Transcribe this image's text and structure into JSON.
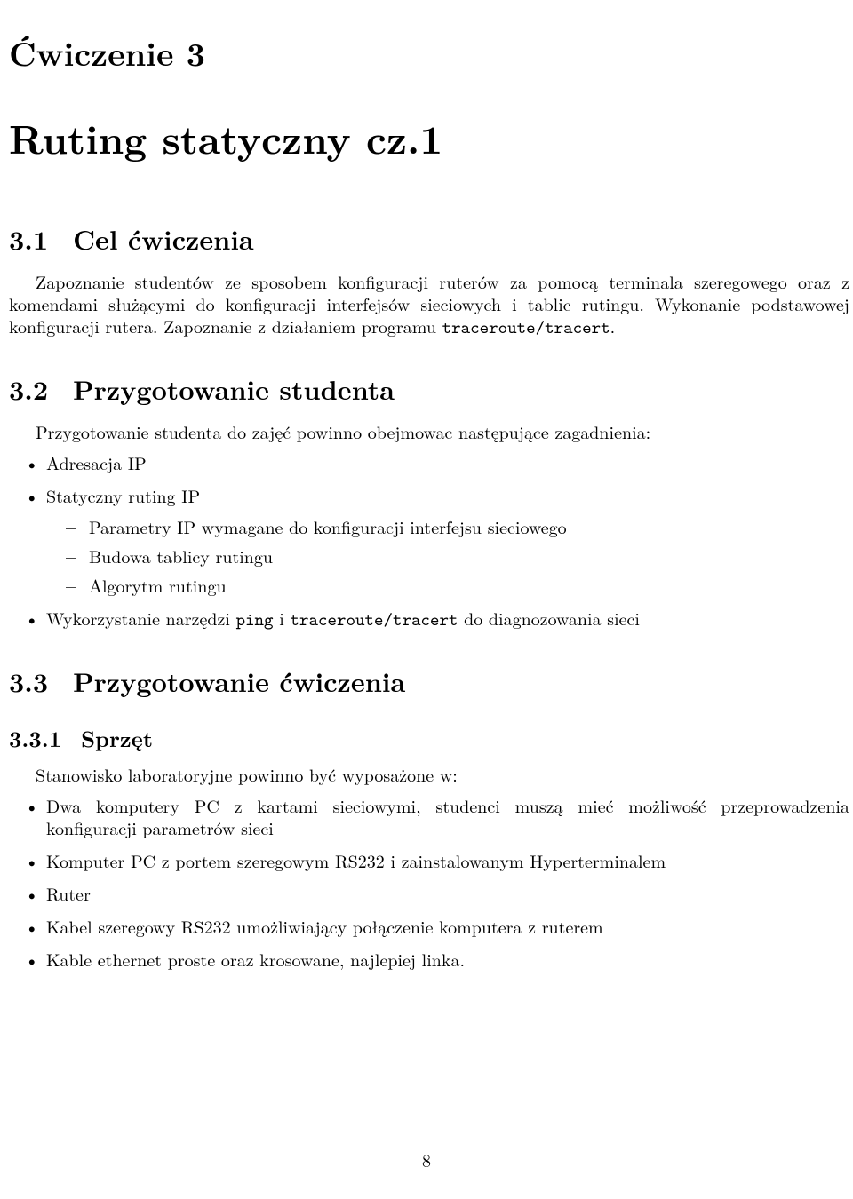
{
  "chapter": {
    "label": "Ćwiczenie 3",
    "title": "Ruting statyczny cz.1"
  },
  "sections": {
    "s1": {
      "num": "3.1",
      "title": "Cel ćwiczenia",
      "para_pre": "Zapoznanie studentów ze sposobem konfiguracji ruterów za pomocą terminala szeregowego oraz z komendami służącymi do konfiguracji interfejsów sieciowych i tablic rutingu. Wykonanie podstawowej konfiguracji rutera. Zapoznanie z działaniem programu ",
      "code": "traceroute/tracert",
      "para_post": "."
    },
    "s2": {
      "num": "3.2",
      "title": "Przygotowanie studenta",
      "intro": "Przygotowanie studenta do zajęć powinno obejmowac następujące zagadnienia:",
      "items": {
        "i0": "Adresacja IP",
        "i1": "Statyczny ruting IP",
        "i1_sub": {
          "a": "Parametry IP wymagane do konfiguracji interfejsu sieciowego",
          "b": "Budowa tablicy rutingu",
          "c": "Algorytm rutingu"
        },
        "i2_pre": "Wykorzystanie narzędzi ",
        "i2_code1": "ping",
        "i2_mid": " i ",
        "i2_code2": "traceroute/tracert",
        "i2_post": " do diagnozowania sieci"
      }
    },
    "s3": {
      "num": "3.3",
      "title": "Przygotowanie ćwiczenia",
      "sub1": {
        "num": "3.3.1",
        "title": "Sprzęt",
        "intro": "Stanowisko laboratoryjne powinno być wyposażone w:",
        "items": {
          "a": "Dwa komputery PC z kartami sieciowymi, studenci muszą mieć możliwość przeprowadzenia konfiguracji parametrów sieci",
          "b": "Komputer PC z portem szeregowym RS232 i zainstalowanym Hyperterminalem",
          "c": "Ruter",
          "d": "Kabel szeregowy RS232 umożliwiający połączenie komputera z ruterem",
          "e": "Kable ethernet proste oraz krosowane, najlepiej linka."
        }
      }
    }
  },
  "page_number": "8"
}
